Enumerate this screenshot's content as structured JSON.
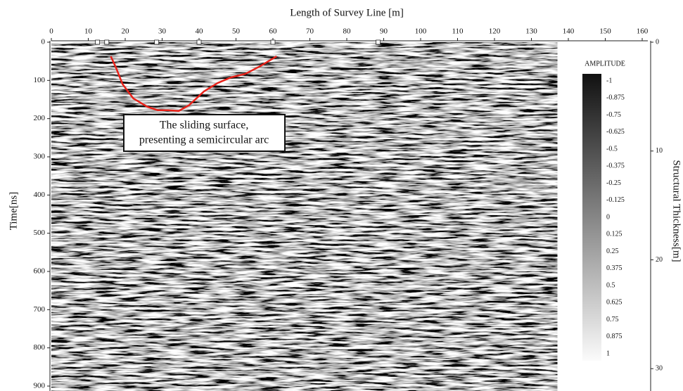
{
  "chart_data": {
    "type": "heatmap",
    "x_label": "Length of Survey Line [m]",
    "y_label": "Time[ns]",
    "y2_label": "Structural Thickness[m]",
    "xlim": [
      0,
      160
    ],
    "xticks": [
      0,
      10,
      20,
      30,
      40,
      50,
      60,
      70,
      80,
      90,
      100,
      110,
      120,
      130,
      140,
      150,
      160
    ],
    "ylim": [
      0,
      900
    ],
    "yticks": [
      0,
      100,
      200,
      300,
      400,
      500,
      600,
      700,
      800,
      900
    ],
    "y2lim": [
      0,
      31.6
    ],
    "y2ticks": [
      0,
      10,
      20,
      30
    ],
    "data_xlim": [
      0,
      137
    ],
    "colorbar": {
      "title": "AMPLITUDE",
      "clim": [
        -1,
        1
      ],
      "ticks": [
        -1,
        -0.875,
        -0.75,
        -0.625,
        -0.5,
        -0.375,
        -0.25,
        -0.125,
        0,
        0.125,
        0.25,
        0.375,
        0.5,
        0.625,
        0.75,
        0.875,
        1
      ]
    },
    "markers": {
      "x": [
        12.5,
        15,
        28.5,
        40,
        60,
        88.5
      ]
    },
    "curve": {
      "color": "#e8221a",
      "x": [
        16.1,
        17.4,
        19.3,
        22.2,
        26,
        28.8,
        31.6,
        34.5,
        37.3,
        41.3,
        45,
        48.7,
        52.5,
        56.3,
        61
      ],
      "y": [
        37,
        64,
        110,
        147,
        169,
        178,
        178,
        180,
        165,
        129,
        107,
        92,
        83,
        64,
        37
      ]
    },
    "annotation": [
      "The sliding surface,",
      "presenting a semicircular arc"
    ]
  }
}
